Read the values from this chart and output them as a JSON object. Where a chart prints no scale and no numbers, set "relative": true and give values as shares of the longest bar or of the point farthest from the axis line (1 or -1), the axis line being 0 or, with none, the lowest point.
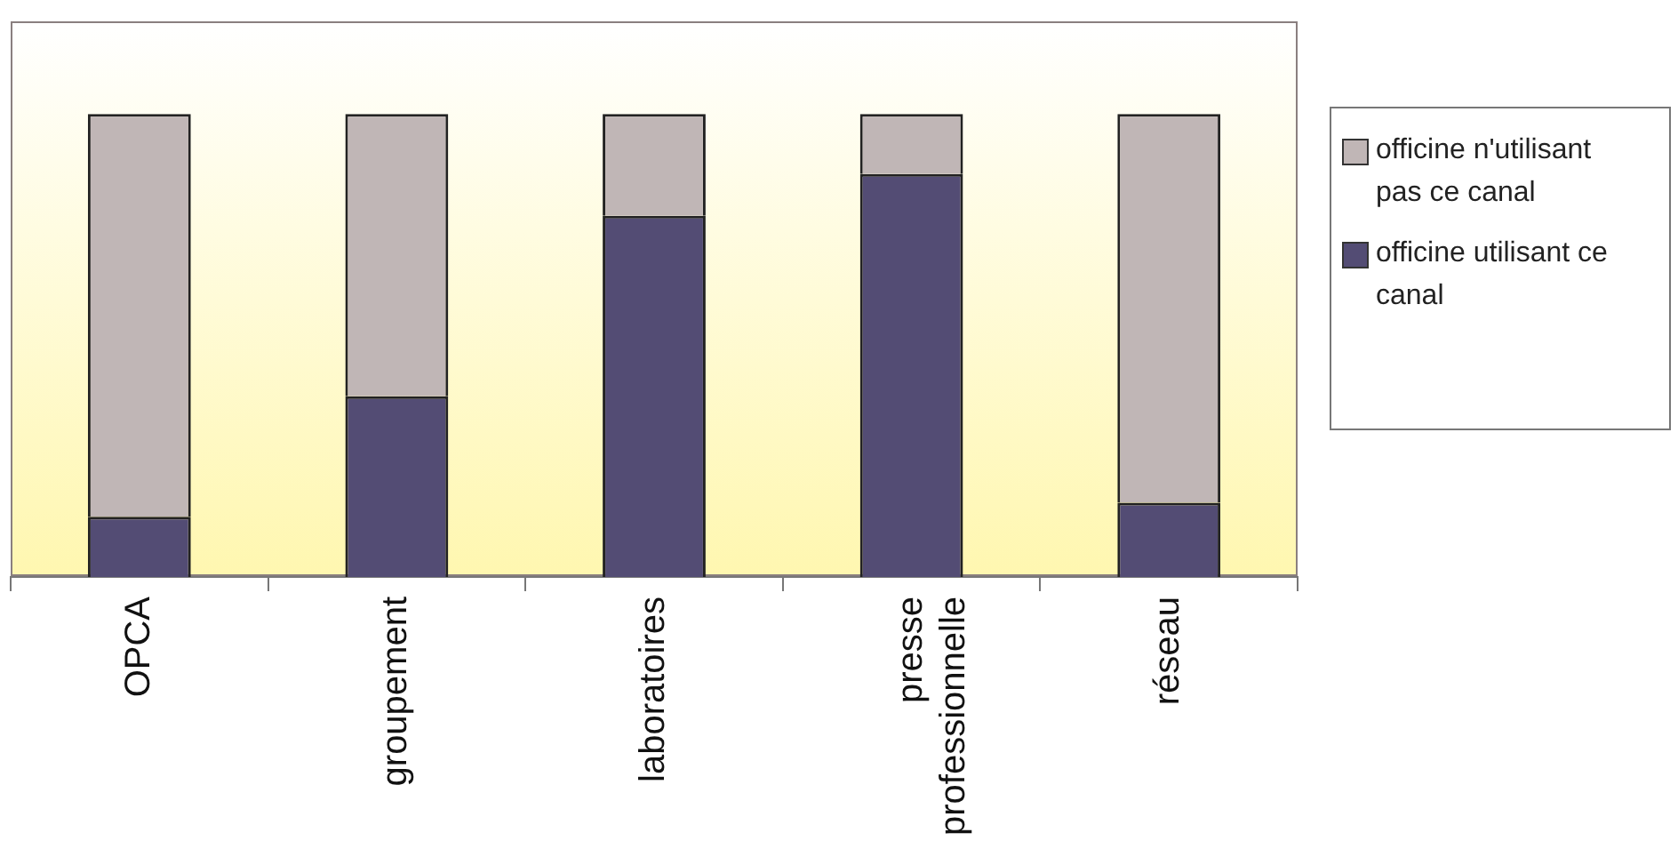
{
  "chart_data": {
    "type": "bar",
    "stacked": true,
    "relative": true,
    "legend": "right",
    "categories": [
      "OPCA",
      "groupement",
      "laboratoires",
      "presse professionnelle",
      "réseau"
    ],
    "series": [
      {
        "name": "officine utilisant ce canal",
        "color": "#534c74",
        "values": [
          0.13,
          0.39,
          0.78,
          0.87,
          0.16
        ]
      },
      {
        "name": "officine n'utilisant pas ce canal",
        "color": "#c0b6b6",
        "values": [
          0.87,
          0.61,
          0.22,
          0.13,
          0.84
        ]
      }
    ]
  }
}
